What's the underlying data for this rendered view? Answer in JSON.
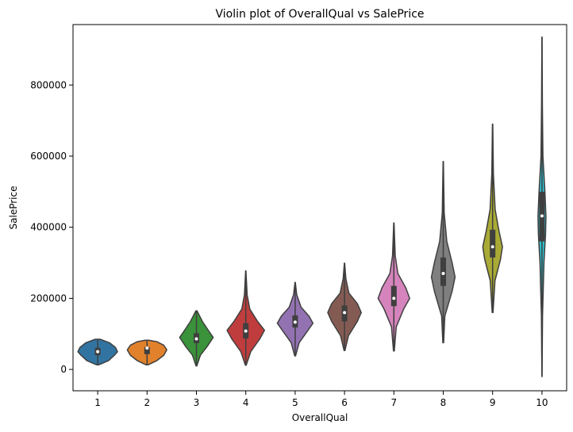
{
  "chart_data": {
    "type": "violin",
    "title": "Violin plot of OverallQual vs SalePrice",
    "xlabel": "OverallQual",
    "ylabel": "SalePrice",
    "ylim": [
      -60000,
      970000
    ],
    "yticks": [
      0,
      200000,
      400000,
      600000,
      800000
    ],
    "ytick_labels": [
      "0",
      "200000",
      "400000",
      "600000",
      "800000"
    ],
    "grid": false,
    "categories": [
      "1",
      "2",
      "3",
      "4",
      "5",
      "6",
      "7",
      "8",
      "9",
      "10"
    ],
    "series": [
      {
        "category": "1",
        "color": "#3274a1",
        "min": 13000,
        "q1": 40000,
        "median": 50000,
        "q3": 61000,
        "max": 85000,
        "density": [
          [
            13000,
            0.05
          ],
          [
            25000,
            0.55
          ],
          [
            40000,
            0.85
          ],
          [
            50000,
            1.0
          ],
          [
            62000,
            0.9
          ],
          [
            75000,
            0.6
          ],
          [
            85000,
            0.12
          ]
        ]
      },
      {
        "category": "2",
        "color": "#e1812c",
        "min": 13000,
        "q1": 43000,
        "median": 60000,
        "q3": 63000,
        "max": 82000,
        "density": [
          [
            13000,
            0.05
          ],
          [
            25000,
            0.5
          ],
          [
            40000,
            0.85
          ],
          [
            55000,
            1.0
          ],
          [
            68000,
            0.85
          ],
          [
            78000,
            0.5
          ],
          [
            82000,
            0.1
          ]
        ]
      },
      {
        "category": "3",
        "color": "#3a923a",
        "min": 10000,
        "q1": 74000,
        "median": 86000,
        "q3": 102000,
        "max": 165000,
        "density": [
          [
            10000,
            0.02
          ],
          [
            40000,
            0.2
          ],
          [
            65000,
            0.55
          ],
          [
            90000,
            0.85
          ],
          [
            110000,
            0.6
          ],
          [
            135000,
            0.3
          ],
          [
            165000,
            0.03
          ]
        ]
      },
      {
        "category": "4",
        "color": "#c03d3e",
        "min": 12000,
        "q1": 87000,
        "median": 108000,
        "q3": 130000,
        "max": 277000,
        "density": [
          [
            12000,
            0.02
          ],
          [
            50000,
            0.25
          ],
          [
            85000,
            0.7
          ],
          [
            110000,
            0.95
          ],
          [
            135000,
            0.6
          ],
          [
            170000,
            0.2
          ],
          [
            210000,
            0.07
          ],
          [
            277000,
            0.01
          ]
        ]
      },
      {
        "category": "5",
        "color": "#9372b2",
        "min": 38000,
        "q1": 118000,
        "median": 133000,
        "q3": 152000,
        "max": 245000,
        "density": [
          [
            38000,
            0.02
          ],
          [
            75000,
            0.2
          ],
          [
            110000,
            0.65
          ],
          [
            130000,
            0.9
          ],
          [
            150000,
            0.7
          ],
          [
            175000,
            0.3
          ],
          [
            210000,
            0.08
          ],
          [
            245000,
            0.01
          ]
        ]
      },
      {
        "category": "6",
        "color": "#845b53",
        "min": 53000,
        "q1": 135000,
        "median": 160000,
        "q3": 180000,
        "max": 299000,
        "density": [
          [
            53000,
            0.02
          ],
          [
            95000,
            0.2
          ],
          [
            135000,
            0.65
          ],
          [
            160000,
            0.85
          ],
          [
            185000,
            0.65
          ],
          [
            215000,
            0.22
          ],
          [
            255000,
            0.07
          ],
          [
            299000,
            0.01
          ]
        ]
      },
      {
        "category": "7",
        "color": "#d684bd",
        "min": 52000,
        "q1": 178000,
        "median": 200000,
        "q3": 235000,
        "max": 412000,
        "density": [
          [
            52000,
            0.02
          ],
          [
            120000,
            0.12
          ],
          [
            170000,
            0.5
          ],
          [
            200000,
            0.8
          ],
          [
            230000,
            0.6
          ],
          [
            270000,
            0.2
          ],
          [
            320000,
            0.07
          ],
          [
            412000,
            0.01
          ]
        ]
      },
      {
        "category": "8",
        "color": "#7f7f7f",
        "min": 75000,
        "q1": 235000,
        "median": 270000,
        "q3": 315000,
        "max": 585000,
        "density": [
          [
            75000,
            0.02
          ],
          [
            150000,
            0.08
          ],
          [
            220000,
            0.45
          ],
          [
            260000,
            0.6
          ],
          [
            300000,
            0.45
          ],
          [
            360000,
            0.18
          ],
          [
            440000,
            0.05
          ],
          [
            585000,
            0.01
          ]
        ]
      },
      {
        "category": "9",
        "color": "#a9aa35",
        "min": 160000,
        "q1": 315000,
        "median": 345000,
        "q3": 393000,
        "max": 690000,
        "density": [
          [
            160000,
            0.02
          ],
          [
            250000,
            0.12
          ],
          [
            310000,
            0.4
          ],
          [
            345000,
            0.5
          ],
          [
            390000,
            0.32
          ],
          [
            450000,
            0.13
          ],
          [
            550000,
            0.04
          ],
          [
            690000,
            0.01
          ]
        ]
      },
      {
        "category": "10",
        "color": "#2ebece",
        "min": -20000,
        "q1": 360000,
        "median": 432000,
        "q3": 500000,
        "max": 935000,
        "density": [
          [
            -20000,
            0.005
          ],
          [
            150000,
            0.03
          ],
          [
            300000,
            0.1
          ],
          [
            380000,
            0.18
          ],
          [
            430000,
            0.2
          ],
          [
            500000,
            0.15
          ],
          [
            600000,
            0.05
          ],
          [
            750000,
            0.02
          ],
          [
            935000,
            0.005
          ]
        ]
      }
    ]
  }
}
